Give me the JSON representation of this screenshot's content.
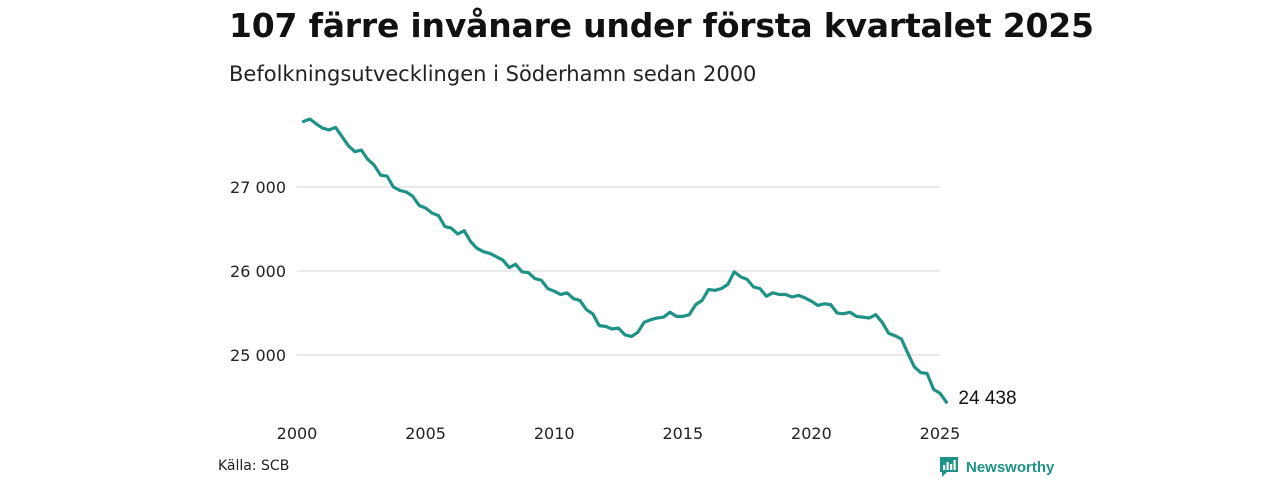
{
  "title": "107 färre invånare under första kvartalet 2025",
  "subtitle": "Befolkningsutvecklingen i Söderhamn sedan 2000",
  "source": "Källa: SCB",
  "brand": {
    "name": "Newsworthy",
    "icon": "newsworthy-logo-icon",
    "color": "#1f9286"
  },
  "chart_data": {
    "type": "line",
    "x_tick_labels": [
      "2000",
      "2005",
      "2010",
      "2015",
      "2020",
      "2025"
    ],
    "y_tick_labels": [
      "25 000",
      "26 000",
      "27 000"
    ],
    "y_ticks": [
      25000,
      26000,
      27000
    ],
    "x_ticks": [
      2000,
      2005,
      2010,
      2015,
      2020,
      2025
    ],
    "xlim": [
      2000,
      2025
    ],
    "ylim": [
      24400,
      27900
    ],
    "grid": true,
    "line_color": "#1f9286",
    "end_label": "24 438",
    "series": [
      {
        "values": [
          [
            2000.25,
            27780
          ],
          [
            2000.5,
            27810
          ],
          [
            2000.75,
            27750
          ],
          [
            2001.0,
            27700
          ],
          [
            2001.25,
            27680
          ],
          [
            2001.5,
            27710
          ],
          [
            2001.75,
            27600
          ],
          [
            2002.0,
            27490
          ],
          [
            2002.25,
            27420
          ],
          [
            2002.5,
            27440
          ],
          [
            2002.75,
            27330
          ],
          [
            2003.0,
            27260
          ],
          [
            2003.25,
            27140
          ],
          [
            2003.5,
            27130
          ],
          [
            2003.75,
            27000
          ],
          [
            2004.0,
            26960
          ],
          [
            2004.25,
            26940
          ],
          [
            2004.5,
            26890
          ],
          [
            2004.75,
            26780
          ],
          [
            2005.0,
            26750
          ],
          [
            2005.25,
            26690
          ],
          [
            2005.5,
            26660
          ],
          [
            2005.75,
            26530
          ],
          [
            2006.0,
            26510
          ],
          [
            2006.25,
            26440
          ],
          [
            2006.5,
            26480
          ],
          [
            2006.75,
            26350
          ],
          [
            2007.0,
            26270
          ],
          [
            2007.25,
            26230
          ],
          [
            2007.5,
            26210
          ],
          [
            2007.75,
            26170
          ],
          [
            2008.0,
            26130
          ],
          [
            2008.25,
            26040
          ],
          [
            2008.5,
            26080
          ],
          [
            2008.75,
            25990
          ],
          [
            2009.0,
            25980
          ],
          [
            2009.25,
            25910
          ],
          [
            2009.5,
            25890
          ],
          [
            2009.75,
            25790
          ],
          [
            2010.0,
            25760
          ],
          [
            2010.25,
            25720
          ],
          [
            2010.5,
            25740
          ],
          [
            2010.75,
            25670
          ],
          [
            2011.0,
            25650
          ],
          [
            2011.25,
            25540
          ],
          [
            2011.5,
            25490
          ],
          [
            2011.75,
            25350
          ],
          [
            2012.0,
            25340
          ],
          [
            2012.25,
            25310
          ],
          [
            2012.5,
            25320
          ],
          [
            2012.75,
            25240
          ],
          [
            2013.0,
            25220
          ],
          [
            2013.25,
            25270
          ],
          [
            2013.5,
            25390
          ],
          [
            2013.75,
            25420
          ],
          [
            2014.0,
            25440
          ],
          [
            2014.25,
            25450
          ],
          [
            2014.5,
            25510
          ],
          [
            2014.75,
            25460
          ],
          [
            2015.0,
            25460
          ],
          [
            2015.25,
            25480
          ],
          [
            2015.5,
            25600
          ],
          [
            2015.75,
            25650
          ],
          [
            2016.0,
            25780
          ],
          [
            2016.25,
            25770
          ],
          [
            2016.5,
            25790
          ],
          [
            2016.75,
            25840
          ],
          [
            2017.0,
            25990
          ],
          [
            2017.25,
            25930
          ],
          [
            2017.5,
            25900
          ],
          [
            2017.75,
            25810
          ],
          [
            2018.0,
            25790
          ],
          [
            2018.25,
            25700
          ],
          [
            2018.5,
            25740
          ],
          [
            2018.75,
            25720
          ],
          [
            2019.0,
            25720
          ],
          [
            2019.25,
            25690
          ],
          [
            2019.5,
            25710
          ],
          [
            2019.75,
            25680
          ],
          [
            2020.0,
            25640
          ],
          [
            2020.25,
            25590
          ],
          [
            2020.5,
            25610
          ],
          [
            2020.75,
            25600
          ],
          [
            2021.0,
            25500
          ],
          [
            2021.25,
            25490
          ],
          [
            2021.5,
            25510
          ],
          [
            2021.75,
            25460
          ],
          [
            2022.0,
            25450
          ],
          [
            2022.25,
            25440
          ],
          [
            2022.5,
            25480
          ],
          [
            2022.75,
            25390
          ],
          [
            2023.0,
            25260
          ],
          [
            2023.25,
            25230
          ],
          [
            2023.5,
            25190
          ],
          [
            2023.75,
            25020
          ],
          [
            2024.0,
            24860
          ],
          [
            2024.25,
            24790
          ],
          [
            2024.5,
            24780
          ],
          [
            2024.75,
            24590
          ],
          [
            2025.0,
            24545
          ],
          [
            2025.25,
            24438
          ]
        ]
      }
    ]
  }
}
